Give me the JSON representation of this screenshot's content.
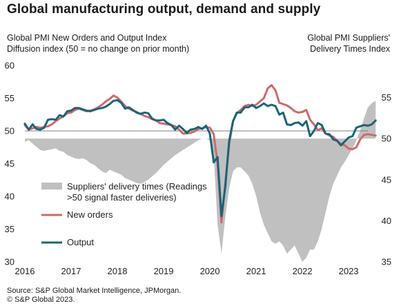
{
  "header": {
    "title": "Global manufacturing output, demand and supply",
    "left_axis_title_line1": "Global PMI New Orders and Output Index",
    "left_axis_title_line2": "Diffusion index (50 = no change on prior month)",
    "right_axis_title_line1": "Global PMI Suppliers'",
    "right_axis_title_line2": "Delivery Times Index"
  },
  "footer": {
    "source_line1": "Source: S&P Global Market Intelligence, JPMorgan.",
    "source_line2": "© S&P Global 2023."
  },
  "colors": {
    "delivery_fill": "#c0c0c0",
    "new_orders": "#d0686b",
    "output": "#1a6478",
    "reference_line": "#7f7f7f"
  },
  "chart_data": {
    "type": "line",
    "x_ticks": [
      "2016",
      "2017",
      "2018",
      "2019",
      "2020",
      "2021",
      "2022",
      "2023"
    ],
    "left_axis": {
      "ylim": [
        30,
        60
      ],
      "ticks": [
        30,
        35,
        40,
        45,
        50,
        55,
        60
      ]
    },
    "right_axis": {
      "ylim": [
        35,
        58.9
      ],
      "ticks": [
        35,
        40,
        45,
        50,
        55
      ],
      "inverted": false
    },
    "reference_line": 50,
    "legend": {
      "placement": "lower-left",
      "delivery_label_line1": "Suppliers' delivery times (Readings",
      "delivery_label_line2": ">50 signal faster deliveries)",
      "new_orders_label": "New orders",
      "output_label": "Output"
    },
    "series": [
      {
        "name": "Suppliers' delivery times (Readings >50 signal faster deliveries)",
        "type": "area",
        "axis": "right",
        "start": "2016-01",
        "values": [
          49.6,
          49.8,
          49.4,
          49.0,
          48.6,
          48.5,
          48.6,
          48.7,
          48.8,
          48.5,
          48.4,
          48.0,
          47.8,
          47.6,
          47.5,
          47.6,
          47.4,
          47.0,
          46.8,
          46.4,
          46.0,
          45.8,
          46.2,
          46.0,
          45.8,
          45.6,
          45.2,
          45.0,
          44.8,
          44.6,
          44.5,
          44.7,
          45.0,
          45.4,
          45.8,
          46.3,
          46.8,
          47.2,
          47.6,
          48.0,
          48.3,
          48.6,
          48.9,
          49.2,
          49.5,
          49.8,
          50.0,
          50.0,
          49.8,
          48.0,
          39.5,
          36.0,
          40.5,
          44.0,
          46.0,
          46.5,
          46.5,
          46.0,
          45.5,
          44.5,
          43.0,
          41.0,
          39.5,
          38.5,
          37.5,
          37.2,
          37.5,
          37.0,
          36.0,
          36.5,
          37.0,
          36.0,
          35.0,
          35.5,
          36.5,
          36.5,
          37.5,
          39.0,
          41.0,
          43.0,
          44.5,
          45.5,
          46.5,
          47.2,
          48.0,
          48.8,
          49.8,
          51.0,
          52.5,
          53.8,
          54.3,
          54.6
        ]
      },
      {
        "name": "New orders",
        "axis": "left",
        "start": "2016-01",
        "values": [
          50.9,
          50.2,
          50.4,
          50.6,
          50.5,
          50.6,
          50.7,
          51.0,
          51.5,
          51.9,
          52.2,
          52.7,
          52.8,
          53.2,
          53.4,
          53.2,
          53.0,
          53.1,
          53.3,
          53.6,
          54.0,
          54.5,
          54.9,
          55.4,
          55.1,
          54.5,
          53.8,
          53.4,
          53.1,
          52.9,
          52.6,
          52.3,
          52.1,
          51.8,
          51.6,
          51.2,
          51.1,
          51.0,
          50.9,
          50.7,
          50.2,
          49.6,
          49.6,
          49.7,
          49.9,
          50.3,
          50.4,
          50.6,
          50.5,
          49.5,
          45.0,
          36.0,
          42.0,
          48.0,
          51.5,
          52.7,
          53.2,
          53.8,
          54.0,
          53.8,
          54.0,
          54.5,
          55.0,
          56.5,
          57.0,
          56.2,
          54.3,
          54.1,
          53.9,
          53.5,
          53.0,
          52.8,
          52.9,
          53.2,
          51.7,
          51.0,
          50.1,
          50.4,
          49.6,
          49.3,
          49.1,
          48.5,
          48.0,
          47.8,
          47.3,
          47.2,
          47.5,
          48.7,
          49.4,
          49.5,
          49.4,
          49.3
        ]
      },
      {
        "name": "Output",
        "axis": "left",
        "start": "2016-01",
        "values": [
          51.1,
          50.2,
          51.0,
          50.3,
          50.2,
          50.5,
          51.7,
          51.8,
          51.7,
          52.4,
          52.2,
          53.0,
          53.1,
          53.5,
          53.5,
          53.3,
          53.1,
          53.0,
          53.2,
          53.4,
          53.5,
          53.7,
          54.1,
          54.6,
          54.7,
          54.3,
          53.4,
          53.6,
          53.2,
          52.8,
          52.6,
          52.8,
          52.7,
          51.9,
          51.6,
          51.6,
          51.7,
          51.2,
          50.9,
          50.2,
          50.8,
          50.3,
          49.7,
          50.2,
          50.3,
          50.6,
          50.3,
          50.8,
          49.6,
          45.2,
          46.0,
          37.0,
          41.5,
          48.5,
          51.5,
          52.8,
          52.8,
          53.6,
          53.6,
          54.0,
          53.5,
          53.8,
          54.2,
          53.8,
          54.0,
          53.8,
          52.5,
          52.8,
          51.0,
          50.9,
          51.2,
          51.3,
          50.8,
          51.5,
          49.2,
          50.0,
          51.2,
          50.9,
          49.6,
          49.5,
          48.7,
          48.5,
          47.8,
          48.4,
          49.0,
          49.2,
          50.5,
          50.7,
          50.9,
          50.8,
          51.0,
          51.6
        ]
      }
    ]
  }
}
